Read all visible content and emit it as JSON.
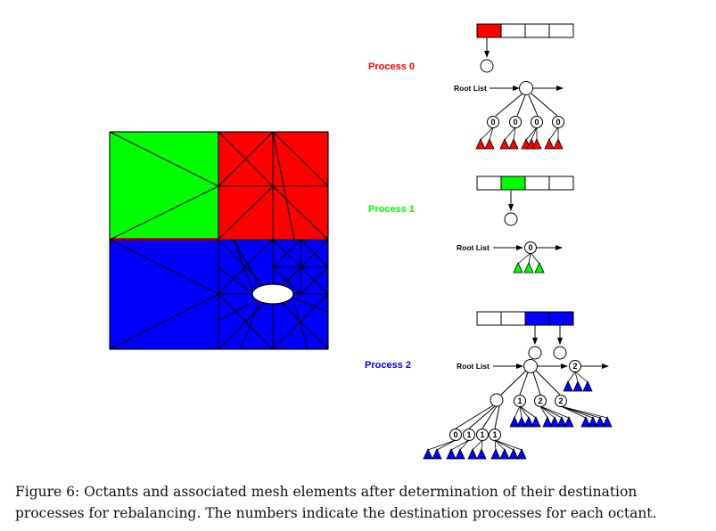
{
  "processes": [
    {
      "label": "Process 0",
      "color": "#ff0000"
    },
    {
      "label": "Process 1",
      "color": "#00ff00"
    },
    {
      "label": "Process 2",
      "color": "#0000ff"
    }
  ],
  "root_list_label": "Root List",
  "arrays": {
    "p0": [
      "#ff0000",
      "#ffffff",
      "#ffffff",
      "#ffffff"
    ],
    "p1": [
      "#ffffff",
      "#00ff00",
      "#ffffff",
      "#ffffff"
    ],
    "p2": [
      "#ffffff",
      "#ffffff",
      "#0000ff",
      "#0000ff"
    ]
  },
  "node_numbers": {
    "p0": [
      "0",
      "0",
      "0",
      "0"
    ],
    "p1": [
      "0"
    ],
    "p2_top": [
      "1",
      "2",
      "2",
      "2"
    ],
    "p2_sub": [
      "0",
      "1",
      "1",
      "1"
    ]
  },
  "mesh_colors": {
    "green": "#00ff00",
    "red": "#ff0000",
    "blue": "#0000ff",
    "hole": "#ffffff"
  },
  "caption": {
    "line1": "Figure 6:  Octants and associated mesh elements after determination of their destination",
    "line2": "processes for rebalancing. The numbers indicate the destination processes for each octant."
  }
}
